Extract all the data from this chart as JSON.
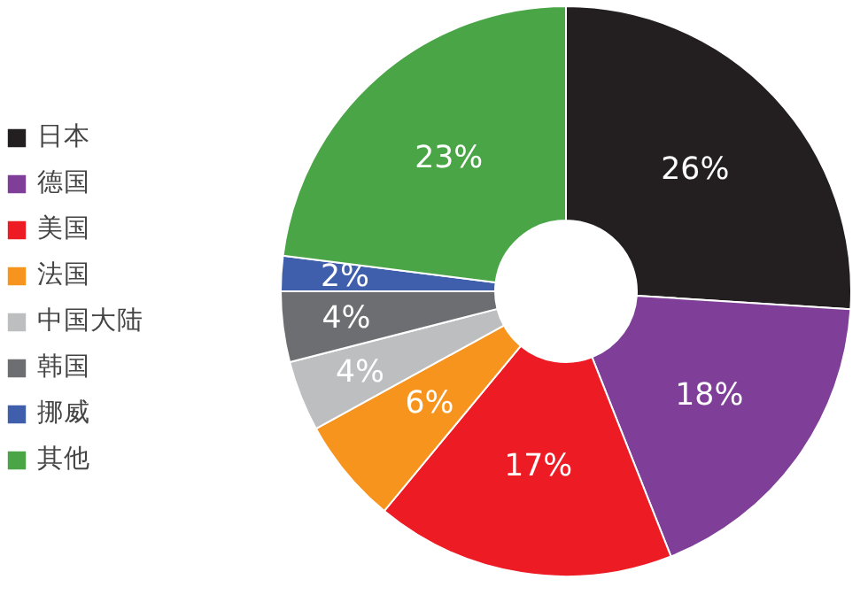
{
  "chart_data": {
    "type": "donut",
    "categories": [
      "日本",
      "德国",
      "美国",
      "法国",
      "中国大陆",
      "韩国",
      "挪威",
      "其他"
    ],
    "values": [
      26,
      18,
      17,
      6,
      4,
      4,
      2,
      23
    ],
    "colors": [
      "#231f20",
      "#7f3f98",
      "#ed1c24",
      "#f7941d",
      "#bcbec0",
      "#6d6e71",
      "#3f5fad",
      "#4aa547"
    ],
    "value_labels": [
      "26%",
      "18%",
      "17%",
      "6%",
      "4%",
      "4%",
      "2%",
      "23%"
    ],
    "legend": "left"
  }
}
